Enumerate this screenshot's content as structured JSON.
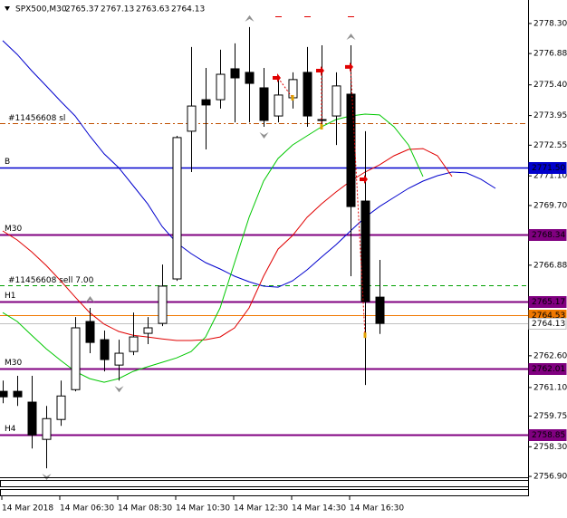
{
  "chart_data": {
    "type": "candlestick",
    "symbol": "SPX500,M30",
    "categories": [
      "14 Mar 2018",
      null,
      null,
      null,
      "14 Mar 06:30",
      null,
      null,
      null,
      "14 Mar 08:30",
      null,
      null,
      null,
      "14 Mar 10:30",
      null,
      null,
      null,
      "14 Mar 12:30",
      null,
      null,
      null,
      "14 Mar 14:30",
      null,
      null,
      null,
      "14 Mar 16:30",
      null,
      null,
      null,
      null,
      null,
      null,
      null,
      null,
      null,
      null
    ],
    "open": [
      2760.92,
      2760.92,
      2760.41,
      2758.65,
      2759.59,
      2761.0,
      2764.22,
      2763.36,
      2762.16,
      2762.8,
      2763.66,
      2764.13,
      2766.23,
      2773.21,
      2774.7,
      2774.7,
      2776.16,
      2775.99,
      2775.26,
      2773.93,
      2774.79,
      2775.99,
      2773.76,
      2773.93,
      2774.96,
      2769.91,
      2765.37,
      null,
      null,
      null,
      null,
      null,
      null,
      null,
      null
    ],
    "high": [
      2761.43,
      2761.65,
      2761.65,
      2760.23,
      2761.43,
      2764.43,
      2764.86,
      2763.79,
      2763.36,
      2764.64,
      2764.43,
      2766.91,
      2772.99,
      2777.19,
      2776.2,
      2777.06,
      2777.36,
      2778.13,
      2776.2,
      2775.77,
      2775.99,
      2777.19,
      2777.27,
      2775.99,
      2777.27,
      2773.21,
      2767.13,
      null,
      null,
      null,
      null,
      null,
      null,
      null,
      null
    ],
    "low": [
      2760.36,
      2760.23,
      2758.22,
      2757.28,
      2759.29,
      2760.92,
      2762.72,
      2761.86,
      2761.43,
      2762.63,
      2763.15,
      2764.0,
      2766.14,
      2771.28,
      2772.35,
      2774.28,
      2773.63,
      2773.63,
      2773.42,
      2773.63,
      2774.28,
      2773.42,
      2773.42,
      2772.56,
      2766.36,
      2761.22,
      2763.63,
      null,
      null,
      null,
      null,
      null,
      null,
      null,
      null
    ],
    "close": [
      2760.66,
      2760.66,
      2758.86,
      2759.63,
      2760.7,
      2763.92,
      2763.23,
      2762.42,
      2762.72,
      2763.49,
      2763.92,
      2765.89,
      2772.91,
      2774.4,
      2774.45,
      2775.9,
      2775.73,
      2775.47,
      2773.72,
      2774.92,
      2775.65,
      2773.93,
      2773.72,
      2775.35,
      2769.65,
      2765.16,
      2764.13,
      null,
      null,
      null,
      null,
      null,
      null,
      null,
      null
    ],
    "up_color": "#ffffff",
    "down_color": "#000000",
    "ylim": [
      2756.86,
      2779.41
    ],
    "yticks": [
      {
        "value": 2778.3,
        "label": "2778.30"
      },
      2776.88,
      {
        "value": 2775.4,
        "label": "2775.40"
      },
      2773.95,
      2772.55,
      {
        "value": 2771.1,
        "label": "2771.10"
      },
      {
        "value": 2769.7,
        "label": "2769.70"
      },
      2766.88,
      {
        "value": 2762.6,
        "label": "2762.60"
      },
      {
        "value": 2761.1,
        "label": "2761.10"
      },
      2759.75,
      {
        "value": 2758.3,
        "label": "2758.30"
      },
      {
        "value": 2756.9,
        "label": "2756.90"
      }
    ],
    "lines": [
      {
        "color": "#0000cd",
        "values": [
          2777.49,
          2776.84,
          2776.07,
          2775.35,
          2774.62,
          2773.93,
          2772.99,
          2772.14,
          2771.49,
          2770.64,
          2769.78,
          2768.71,
          2767.94,
          2767.43,
          2767.0,
          2766.7,
          2766.36,
          2766.1,
          2765.89,
          2765.84,
          2766.14,
          2766.66,
          2767.26,
          2767.85,
          2768.5,
          2769.14,
          2769.65,
          2770.08,
          2770.51,
          2770.85,
          2771.11,
          2771.28,
          2771.24,
          2770.94,
          2770.51
        ]
      },
      {
        "color": "#e00000",
        "values": [
          2768.5,
          2768.07,
          2767.51,
          2766.87,
          2766.14,
          2765.37,
          2764.64,
          2764.09,
          2763.75,
          2763.57,
          2763.49,
          2763.4,
          2763.32,
          2763.32,
          2763.36,
          2763.49,
          2763.92,
          2764.86,
          2766.36,
          2767.64,
          2768.28,
          2769.14,
          2769.78,
          2770.34,
          2770.85,
          2771.28,
          2771.62,
          2772.05,
          2772.35,
          2772.39,
          2772.05,
          2771.07,
          null,
          null,
          null
        ]
      },
      {
        "color": "#00c800",
        "values": [
          2764.64,
          2764.22,
          2763.57,
          2762.93,
          2762.38,
          2761.86,
          2761.52,
          2761.35,
          2761.52,
          2761.86,
          2762.08,
          2762.29,
          2762.5,
          2762.8,
          2763.49,
          2764.86,
          2767.0,
          2769.14,
          2770.85,
          2771.92,
          2772.56,
          2772.99,
          2773.42,
          2773.76,
          2773.93,
          2774.02,
          2773.98,
          2773.42,
          2772.56,
          2771.07,
          null,
          null,
          null,
          null,
          null
        ]
      }
    ],
    "fractals_up": [
      null,
      null,
      null,
      null,
      null,
      null,
      2764.86,
      null,
      null,
      null,
      null,
      null,
      null,
      null,
      null,
      null,
      null,
      2778.13,
      null,
      null,
      null,
      null,
      null,
      null,
      2777.27,
      null,
      null,
      null,
      null,
      null,
      null,
      null,
      null,
      null,
      null
    ],
    "fractals_down": [
      null,
      null,
      null,
      2757.28,
      null,
      null,
      null,
      null,
      2761.43,
      null,
      null,
      null,
      null,
      null,
      null,
      null,
      null,
      null,
      2773.42,
      null,
      null,
      null,
      null,
      null,
      null,
      null,
      null,
      null,
      null,
      null,
      null,
      null,
      null,
      null,
      null
    ],
    "trades": [
      {
        "open_x": 19,
        "open": 2775.73,
        "close_x": 20,
        "close": 2774.79
      },
      {
        "open_x": 22,
        "open": 2776.07,
        "close_x": 22,
        "close": 2773.42
      },
      {
        "open_x": 24,
        "open": 2776.25,
        "close_x": 25,
        "close": 2763.57
      },
      {
        "open_x": 25,
        "open": 2770.94,
        "close_x": null,
        "close": null
      }
    ],
    "levels": [
      {
        "name": "B",
        "value": 2771.5,
        "label": "2771.50",
        "color": "#0000cd"
      },
      {
        "name": "M30",
        "value": 2768.34,
        "color": "#800080"
      },
      {
        "name": "H1",
        "value": 2765.17,
        "color": "#800080"
      },
      {
        "value": 2764.53,
        "color": "#f07800"
      },
      {
        "value": 2764.13,
        "color": "#c0c0c0"
      },
      {
        "name": "M30",
        "value": 2762.01,
        "color": "#800080"
      },
      {
        "name": "H4",
        "value": 2758.85,
        "color": "#800080"
      }
    ],
    "orders": [
      {
        "name": "#11456608 sl",
        "value": 2773.59,
        "color": "#c05000"
      },
      {
        "name": "#11456608 sell 7.00",
        "value": 2765.93,
        "color": "#00a000"
      }
    ]
  }
}
